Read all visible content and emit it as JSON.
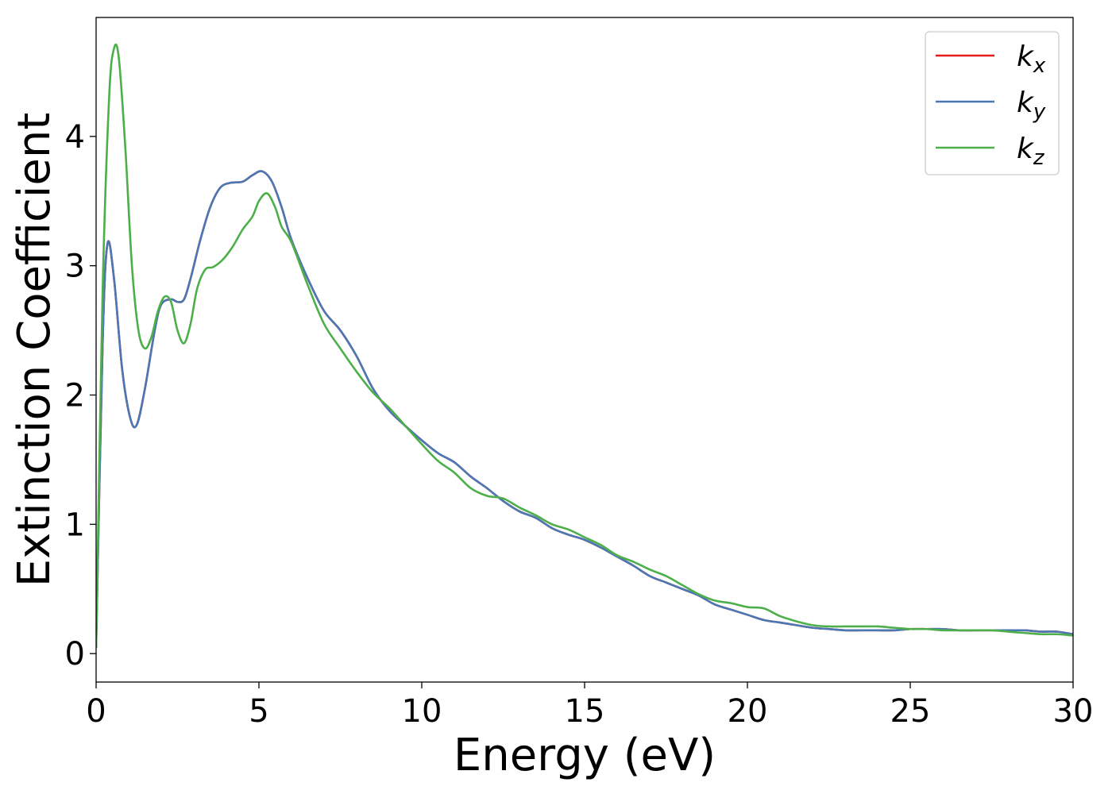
{
  "chart_data": {
    "type": "line",
    "title": "",
    "xlabel": "Energy (eV)",
    "ylabel": "Extinction Coefficient",
    "xlim": [
      0,
      30
    ],
    "ylim": [
      -0.22,
      4.92
    ],
    "xticks": [
      0,
      5,
      10,
      15,
      20,
      25,
      30
    ],
    "yticks": [
      0,
      1,
      2,
      3,
      4
    ],
    "grid": false,
    "legend_position": "top-right",
    "series": [
      {
        "name": "kx",
        "name_main": "k",
        "name_sub": "x",
        "color": "#e41a1c",
        "x": [
          0,
          0.2,
          0.35,
          0.55,
          0.8,
          1.05,
          1.25,
          1.5,
          1.8,
          2.0,
          2.3,
          2.5,
          2.7,
          2.9,
          3.2,
          3.5,
          3.8,
          4.1,
          4.5,
          4.8,
          5.1,
          5.4,
          5.7,
          6.0,
          6.5,
          7.0,
          7.5,
          8.0,
          8.5,
          9.0,
          9.5,
          10.0,
          10.5,
          11.0,
          11.5,
          12.0,
          12.5,
          13.0,
          13.5,
          14.0,
          14.5,
          15.0,
          15.5,
          16.0,
          16.5,
          17.0,
          17.5,
          18.0,
          18.5,
          19.0,
          19.5,
          20.0,
          20.5,
          21.0,
          21.5,
          22.0,
          22.5,
          23.0,
          23.5,
          24.0,
          24.5,
          25.0,
          25.5,
          26.0,
          26.5,
          27.0,
          27.5,
          28.0,
          28.5,
          29.0,
          29.5,
          30.0
        ],
        "y": [
          0.05,
          2.4,
          3.17,
          2.9,
          2.2,
          1.82,
          1.77,
          2.05,
          2.5,
          2.7,
          2.74,
          2.72,
          2.74,
          2.9,
          3.2,
          3.45,
          3.6,
          3.64,
          3.65,
          3.7,
          3.73,
          3.65,
          3.45,
          3.2,
          2.9,
          2.65,
          2.5,
          2.3,
          2.05,
          1.88,
          1.76,
          1.65,
          1.55,
          1.48,
          1.37,
          1.28,
          1.18,
          1.1,
          1.05,
          0.97,
          0.92,
          0.88,
          0.82,
          0.75,
          0.68,
          0.6,
          0.55,
          0.5,
          0.45,
          0.38,
          0.34,
          0.3,
          0.26,
          0.24,
          0.22,
          0.2,
          0.19,
          0.18,
          0.18,
          0.18,
          0.18,
          0.19,
          0.19,
          0.19,
          0.18,
          0.18,
          0.18,
          0.18,
          0.18,
          0.17,
          0.17,
          0.15
        ]
      },
      {
        "name": "ky",
        "name_main": "k",
        "name_sub": "y",
        "color": "#4a78b4",
        "x": [
          0,
          0.2,
          0.35,
          0.55,
          0.8,
          1.05,
          1.25,
          1.5,
          1.8,
          2.0,
          2.3,
          2.5,
          2.7,
          2.9,
          3.2,
          3.5,
          3.8,
          4.1,
          4.5,
          4.8,
          5.1,
          5.4,
          5.7,
          6.0,
          6.5,
          7.0,
          7.5,
          8.0,
          8.5,
          9.0,
          9.5,
          10.0,
          10.5,
          11.0,
          11.5,
          12.0,
          12.5,
          13.0,
          13.5,
          14.0,
          14.5,
          15.0,
          15.5,
          16.0,
          16.5,
          17.0,
          17.5,
          18.0,
          18.5,
          19.0,
          19.5,
          20.0,
          20.5,
          21.0,
          21.5,
          22.0,
          22.5,
          23.0,
          23.5,
          24.0,
          24.5,
          25.0,
          25.5,
          26.0,
          26.5,
          27.0,
          27.5,
          28.0,
          28.5,
          29.0,
          29.5,
          30.0
        ],
        "y": [
          0.05,
          2.4,
          3.17,
          2.9,
          2.2,
          1.82,
          1.77,
          2.05,
          2.5,
          2.7,
          2.74,
          2.72,
          2.74,
          2.9,
          3.2,
          3.45,
          3.6,
          3.64,
          3.65,
          3.7,
          3.73,
          3.65,
          3.45,
          3.2,
          2.9,
          2.65,
          2.5,
          2.3,
          2.05,
          1.88,
          1.76,
          1.65,
          1.55,
          1.48,
          1.37,
          1.28,
          1.18,
          1.1,
          1.05,
          0.97,
          0.92,
          0.88,
          0.82,
          0.75,
          0.68,
          0.6,
          0.55,
          0.5,
          0.45,
          0.38,
          0.34,
          0.3,
          0.26,
          0.24,
          0.22,
          0.2,
          0.19,
          0.18,
          0.18,
          0.18,
          0.18,
          0.19,
          0.19,
          0.19,
          0.18,
          0.18,
          0.18,
          0.18,
          0.18,
          0.17,
          0.17,
          0.15
        ]
      },
      {
        "name": "kz",
        "name_main": "k",
        "name_sub": "z",
        "color": "#4daf4a",
        "x": [
          0,
          0.2,
          0.4,
          0.55,
          0.7,
          0.9,
          1.1,
          1.3,
          1.5,
          1.7,
          1.9,
          2.1,
          2.3,
          2.5,
          2.7,
          2.9,
          3.1,
          3.35,
          3.6,
          3.9,
          4.2,
          4.5,
          4.8,
          5.0,
          5.25,
          5.5,
          5.7,
          6.0,
          6.5,
          7.0,
          7.5,
          8.0,
          8.5,
          9.0,
          9.5,
          10.0,
          10.5,
          11.0,
          11.5,
          12.0,
          12.5,
          13.0,
          13.5,
          14.0,
          14.5,
          15.0,
          15.5,
          16.0,
          16.5,
          17.0,
          17.5,
          18.0,
          18.5,
          19.0,
          19.5,
          20.0,
          20.5,
          21.0,
          21.5,
          22.0,
          22.5,
          23.0,
          23.5,
          24.0,
          24.5,
          25.0,
          25.5,
          26.0,
          26.5,
          27.0,
          27.5,
          28.0,
          28.5,
          29.0,
          29.5,
          30.0
        ],
        "y": [
          0.05,
          2.8,
          4.3,
          4.68,
          4.6,
          3.9,
          3.0,
          2.5,
          2.36,
          2.45,
          2.65,
          2.76,
          2.72,
          2.5,
          2.4,
          2.55,
          2.82,
          2.97,
          2.99,
          3.05,
          3.15,
          3.28,
          3.38,
          3.5,
          3.56,
          3.45,
          3.3,
          3.18,
          2.85,
          2.55,
          2.36,
          2.18,
          2.02,
          1.9,
          1.76,
          1.62,
          1.49,
          1.4,
          1.28,
          1.22,
          1.2,
          1.13,
          1.07,
          1.0,
          0.96,
          0.9,
          0.84,
          0.76,
          0.71,
          0.65,
          0.6,
          0.53,
          0.46,
          0.41,
          0.39,
          0.36,
          0.35,
          0.29,
          0.25,
          0.22,
          0.21,
          0.21,
          0.21,
          0.21,
          0.2,
          0.19,
          0.19,
          0.18,
          0.18,
          0.18,
          0.18,
          0.17,
          0.16,
          0.15,
          0.15,
          0.14
        ]
      }
    ]
  }
}
